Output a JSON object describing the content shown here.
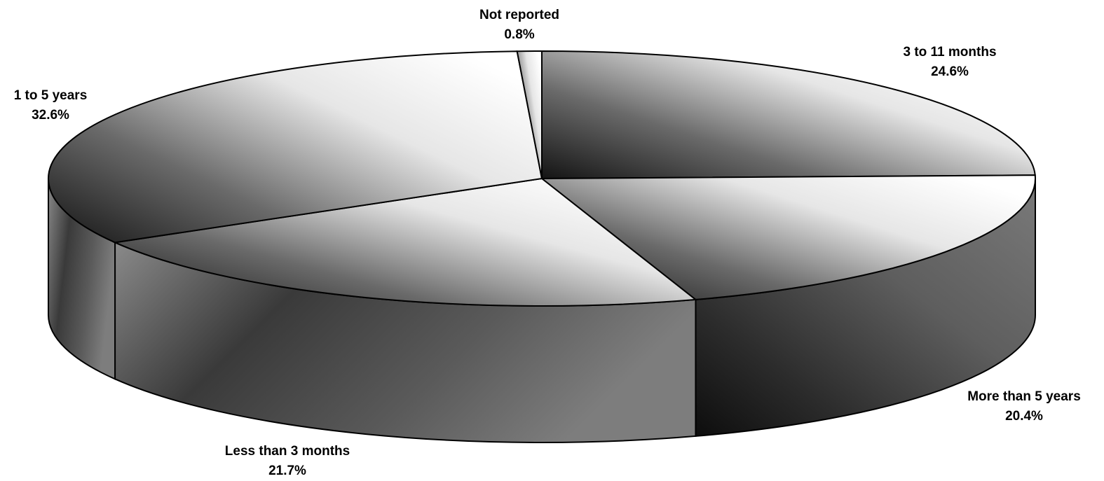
{
  "chart_data": {
    "type": "pie",
    "title": "",
    "three_d": true,
    "categories": [
      "3 to 11 months",
      "More than 5 years",
      "Less than 3 months",
      "1 to 5 years",
      "Not reported"
    ],
    "values": [
      24.6,
      20.4,
      21.7,
      32.6,
      0.8
    ],
    "data_labels": [
      "24.6%",
      "20.4%",
      "21.7%",
      "32.6%",
      "0.8%"
    ],
    "legend": "none",
    "colors": {
      "top_light": "#ffffff",
      "top_dark": "#1a1a1a",
      "side_mid": "#6e6e6e",
      "side_dark": "#141414",
      "outline": "#000000"
    }
  }
}
